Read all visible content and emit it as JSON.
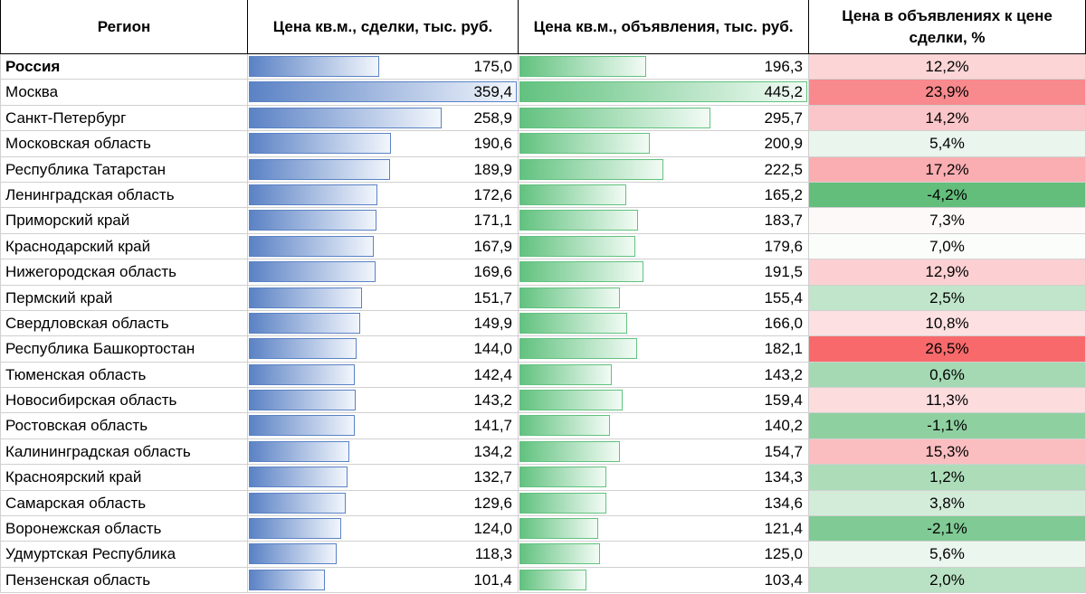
{
  "header": {
    "region": "Регион",
    "deal_price": "Цена кв.м., сделки, тыс. руб.",
    "ad_price": "Цена кв.м., объявления, тыс. руб.",
    "ratio": "Цена в объявлениях к цене сделки, %"
  },
  "scale": {
    "deal_max": 359.4,
    "ad_max": 445.2
  },
  "rows": [
    {
      "region": "Россия",
      "deal": 175.0,
      "deal_text": "175,0",
      "ad": 196.3,
      "ad_text": "196,3",
      "ratio_text": "12,2%",
      "ratio_color": "#fcd5d7",
      "bold": true
    },
    {
      "region": "Москва",
      "deal": 359.4,
      "deal_text": "359,4",
      "ad": 445.2,
      "ad_text": "445,2",
      "ratio_text": "23,9%",
      "ratio_color": "#f8898c"
    },
    {
      "region": "Санкт-Петербург",
      "deal": 258.9,
      "deal_text": "258,9",
      "ad": 295.7,
      "ad_text": "295,7",
      "ratio_text": "14,2%",
      "ratio_color": "#fbc6c9"
    },
    {
      "region": "Московская область",
      "deal": 190.6,
      "deal_text": "190,6",
      "ad": 200.9,
      "ad_text": "200,9",
      "ratio_text": "5,4%",
      "ratio_color": "#e9f5ed"
    },
    {
      "region": "Республика Татарстан",
      "deal": 189.9,
      "deal_text": "189,9",
      "ad": 222.5,
      "ad_text": "222,5",
      "ratio_text": "17,2%",
      "ratio_color": "#faaeb1"
    },
    {
      "region": "Ленинградская область",
      "deal": 172.6,
      "deal_text": "172,6",
      "ad": 165.2,
      "ad_text": "165,2",
      "ratio_text": "-4,2%",
      "ratio_color": "#63be7b"
    },
    {
      "region": "Приморский край",
      "deal": 171.1,
      "deal_text": "171,1",
      "ad": 183.7,
      "ad_text": "183,7",
      "ratio_text": "7,3%",
      "ratio_color": "#fdf9f9"
    },
    {
      "region": "Краснодарский край",
      "deal": 167.9,
      "deal_text": "167,9",
      "ad": 179.6,
      "ad_text": "179,6",
      "ratio_text": "7,0%",
      "ratio_color": "#fbfdfb"
    },
    {
      "region": "Нижегородская область",
      "deal": 169.6,
      "deal_text": "169,6",
      "ad": 191.5,
      "ad_text": "191,5",
      "ratio_text": "12,9%",
      "ratio_color": "#fcd0d2"
    },
    {
      "region": "Пермский край",
      "deal": 151.7,
      "deal_text": "151,7",
      "ad": 155.4,
      "ad_text": "155,4",
      "ratio_text": "2,5%",
      "ratio_color": "#c0e5ca"
    },
    {
      "region": "Свердловская область",
      "deal": 149.9,
      "deal_text": "149,9",
      "ad": 166.0,
      "ad_text": "166,0",
      "ratio_text": "10,8%",
      "ratio_color": "#fde0e1"
    },
    {
      "region": "Республика Башкортостан",
      "deal": 144.0,
      "deal_text": "144,0",
      "ad": 182.1,
      "ad_text": "182,1",
      "ratio_text": "26,5%",
      "ratio_color": "#f8696b"
    },
    {
      "region": "Тюменская область",
      "deal": 142.4,
      "deal_text": "142,4",
      "ad": 143.2,
      "ad_text": "143,2",
      "ratio_text": "0,6%",
      "ratio_color": "#a4d9b3"
    },
    {
      "region": "Новосибирская область",
      "deal": 143.2,
      "deal_text": "143,2",
      "ad": 159.4,
      "ad_text": "159,4",
      "ratio_text": "11,3%",
      "ratio_color": "#fcdcdd"
    },
    {
      "region": "Ростовская область",
      "deal": 141.7,
      "deal_text": "141,7",
      "ad": 140.2,
      "ad_text": "140,2",
      "ratio_text": "-1,1%",
      "ratio_color": "#8fd0a1"
    },
    {
      "region": "Калининградская область",
      "deal": 134.2,
      "deal_text": "134,2",
      "ad": 154.7,
      "ad_text": "154,7",
      "ratio_text": "15,3%",
      "ratio_color": "#fbbec0"
    },
    {
      "region": "Красноярский край",
      "deal": 132.7,
      "deal_text": "132,7",
      "ad": 134.3,
      "ad_text": "134,3",
      "ratio_text": "1,2%",
      "ratio_color": "#addcb9"
    },
    {
      "region": "Самарская область",
      "deal": 129.6,
      "deal_text": "129,6",
      "ad": 134.6,
      "ad_text": "134,6",
      "ratio_text": "3,8%",
      "ratio_color": "#d3ecda"
    },
    {
      "region": "Воронежская область",
      "deal": 124.0,
      "deal_text": "124,0",
      "ad": 121.4,
      "ad_text": "121,4",
      "ratio_text": "-2,1%",
      "ratio_color": "#80ca95"
    },
    {
      "region": "Удмуртская Республика",
      "deal": 118.3,
      "deal_text": "118,3",
      "ad": 125.0,
      "ad_text": "125,0",
      "ratio_text": "5,6%",
      "ratio_color": "#eaf6ee"
    },
    {
      "region": "Пензенская область",
      "deal": 101.4,
      "deal_text": "101,4",
      "ad": 103.4,
      "ad_text": "103,4",
      "ratio_text": "2,0%",
      "ratio_color": "#b9e2c4"
    }
  ]
}
